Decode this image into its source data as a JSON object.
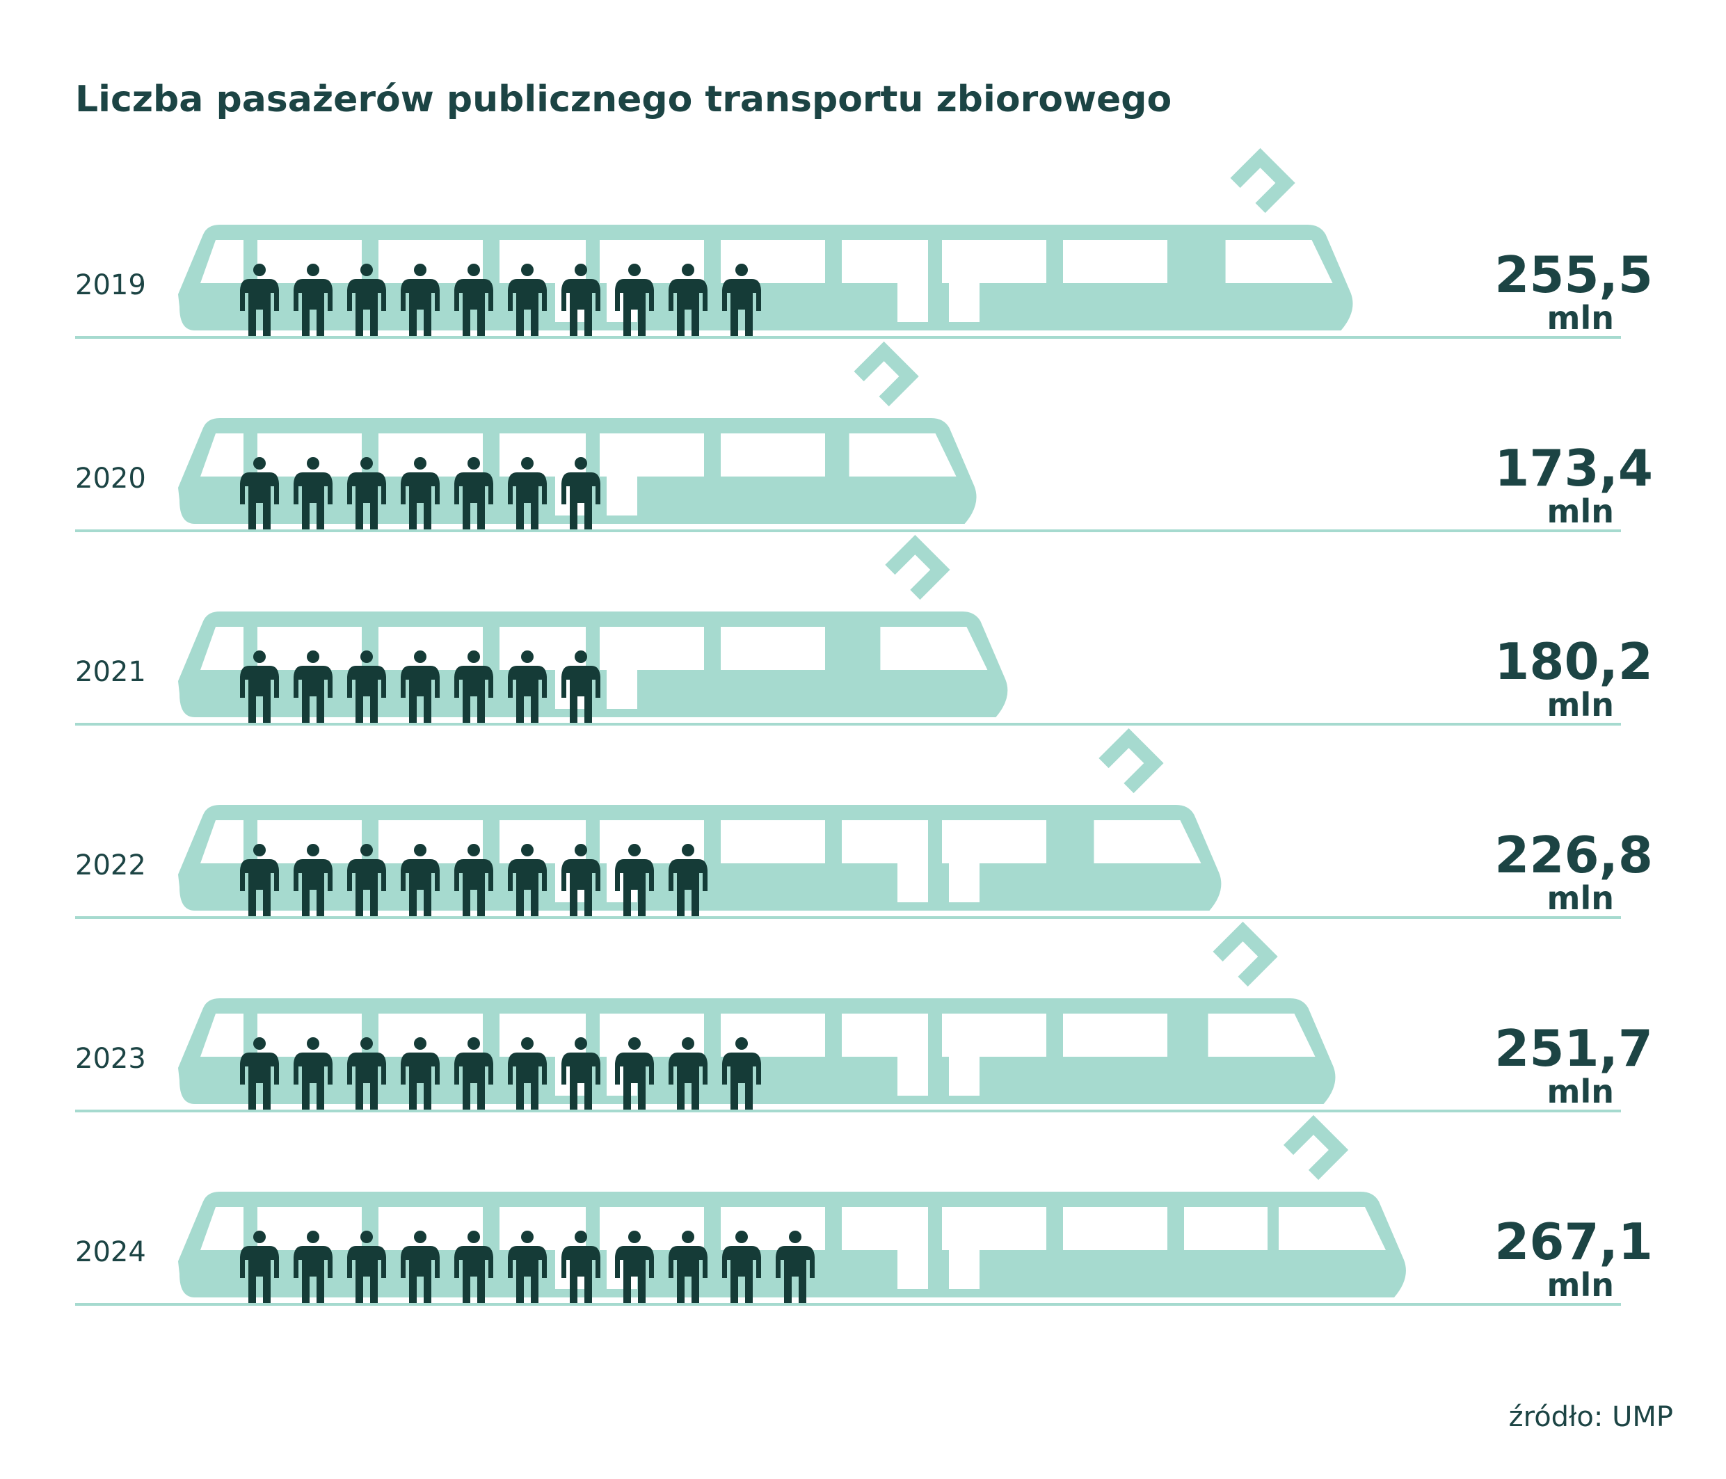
{
  "colors": {
    "train": "#a6dacf",
    "window": "#ffffff",
    "person": "#153b37",
    "text": "#1c4444",
    "baseline": "#a6dacf"
  },
  "chart_data": {
    "type": "bar",
    "orientation": "horizontal",
    "title": "Liczba pasażerów publicznego transportu zbiorowego",
    "categories": [
      "2019",
      "2020",
      "2021",
      "2022",
      "2023",
      "2024"
    ],
    "values": [
      255.5,
      173.4,
      180.2,
      226.8,
      251.7,
      267.1
    ],
    "value_labels": [
      "255,5",
      "173,4",
      "180,2",
      "226,8",
      "251,7",
      "267,1"
    ],
    "unit": "mln",
    "icons_per_row": [
      10,
      7,
      7,
      9,
      10,
      11
    ],
    "icon": "person-icon",
    "bar_shape": "tram-icon",
    "source": "źródło: UMP"
  }
}
